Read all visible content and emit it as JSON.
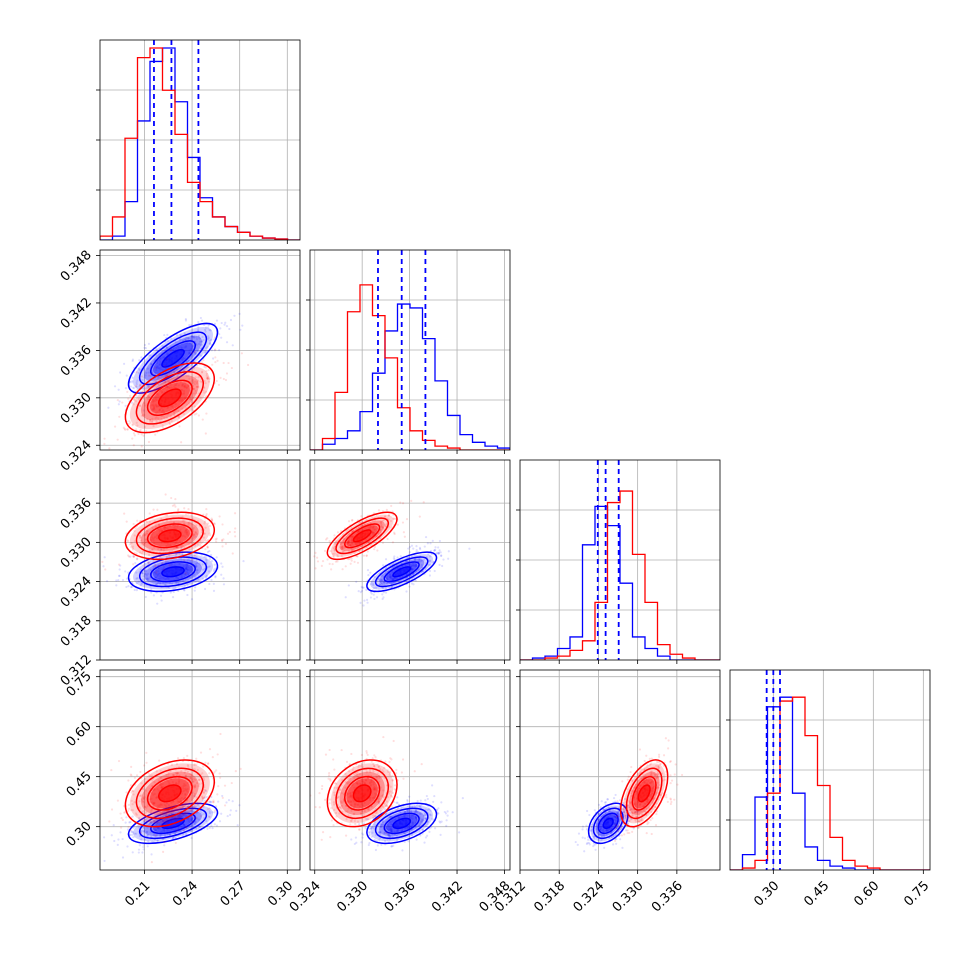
{
  "chart_data": {
    "type": "corner",
    "grid": true,
    "parameters": [
      {
        "index": 0,
        "xlim": [
          0.182,
          0.308
        ],
        "ticks": [
          0.21,
          0.24,
          0.27,
          0.3
        ],
        "tick_labels": [
          "0.21",
          "0.24",
          "0.27",
          "0.30"
        ],
        "quantiles": [
          0.216,
          0.227,
          0.244
        ]
      },
      {
        "index": 1,
        "xlim": [
          0.3234,
          0.3487
        ],
        "ticks": [
          0.324,
          0.33,
          0.336,
          0.342,
          0.348
        ],
        "tick_labels": [
          "0.324",
          "0.330",
          "0.336",
          "0.342",
          "0.348"
        ],
        "quantiles": [
          0.332,
          0.335,
          0.338
        ]
      },
      {
        "index": 2,
        "xlim": [
          0.312,
          0.3426
        ],
        "ticks": [
          0.312,
          0.318,
          0.324,
          0.33,
          0.336
        ],
        "tick_labels": [
          "0.312",
          "0.318",
          "0.324",
          "0.330",
          "0.336"
        ],
        "quantiles": [
          0.3239,
          0.3251,
          0.3271
        ]
      },
      {
        "index": 3,
        "xlim": [
          0.17,
          0.77
        ],
        "ticks": [
          0.3,
          0.45,
          0.6,
          0.75
        ],
        "tick_labels": [
          "0.30",
          "0.45",
          "0.60",
          "0.75"
        ],
        "quantiles": [
          0.28,
          0.3,
          0.32
        ]
      }
    ],
    "series": [
      {
        "color": "#0000ff",
        "means": [
          0.228,
          0.335,
          0.3255,
          0.31
        ],
        "sds": [
          0.014,
          0.0022,
          0.0015,
          0.03
        ],
        "correlations": {
          "0-1": 0.75,
          "0-2": 0.3,
          "0-3": 0.55,
          "1-2": 0.72,
          "1-3": 0.45,
          "2-3": 0.4
        },
        "histograms": [
          [
            0.0,
            0.02,
            0.2,
            0.62,
            0.93,
            1.0,
            0.72,
            0.43,
            0.22,
            0.12,
            0.07,
            0.04,
            0.02,
            0.01,
            0.005,
            0.0
          ],
          [
            0.0,
            0.03,
            0.06,
            0.1,
            0.2,
            0.4,
            0.62,
            0.76,
            0.74,
            0.58,
            0.36,
            0.18,
            0.08,
            0.04,
            0.02,
            0.01
          ],
          [
            0.0,
            0.01,
            0.02,
            0.06,
            0.12,
            0.6,
            0.8,
            0.7,
            0.4,
            0.12,
            0.06,
            0.02,
            0.0,
            0.0,
            0.0,
            0.0
          ],
          [
            0.0,
            0.08,
            0.38,
            0.85,
            0.9,
            0.4,
            0.12,
            0.05,
            0.02,
            0.01,
            0.0,
            0.0,
            0.0,
            0.0,
            0.0,
            0.0
          ]
        ]
      },
      {
        "color": "#ff0000",
        "means": [
          0.226,
          0.33,
          0.331,
          0.4
        ],
        "sds": [
          0.014,
          0.0022,
          0.0018,
          0.05
        ],
        "correlations": {
          "0-1": 0.55,
          "0-2": 0.25,
          "0-3": 0.35,
          "1-2": 0.72,
          "1-3": 0.25,
          "2-3": 0.5
        },
        "histograms": [
          [
            0.02,
            0.12,
            0.53,
            0.95,
            1.0,
            0.78,
            0.55,
            0.3,
            0.2,
            0.12,
            0.07,
            0.04,
            0.02,
            0.01,
            0.005,
            0.0
          ],
          [
            0.0,
            0.06,
            0.3,
            0.72,
            0.86,
            0.7,
            0.48,
            0.22,
            0.1,
            0.05,
            0.02,
            0.01,
            0.0,
            0.0,
            0.0,
            0.0
          ],
          [
            0.0,
            0.0,
            0.01,
            0.02,
            0.05,
            0.1,
            0.3,
            0.82,
            0.88,
            0.55,
            0.3,
            0.08,
            0.03,
            0.01,
            0.0,
            0.0
          ],
          [
            0.0,
            0.01,
            0.05,
            0.4,
            0.88,
            0.9,
            0.7,
            0.44,
            0.17,
            0.05,
            0.02,
            0.01,
            0.0,
            0.0,
            0.0,
            0.0
          ]
        ]
      }
    ],
    "contour_levels": [
      0.5,
      1.0,
      1.5,
      2.0
    ]
  }
}
